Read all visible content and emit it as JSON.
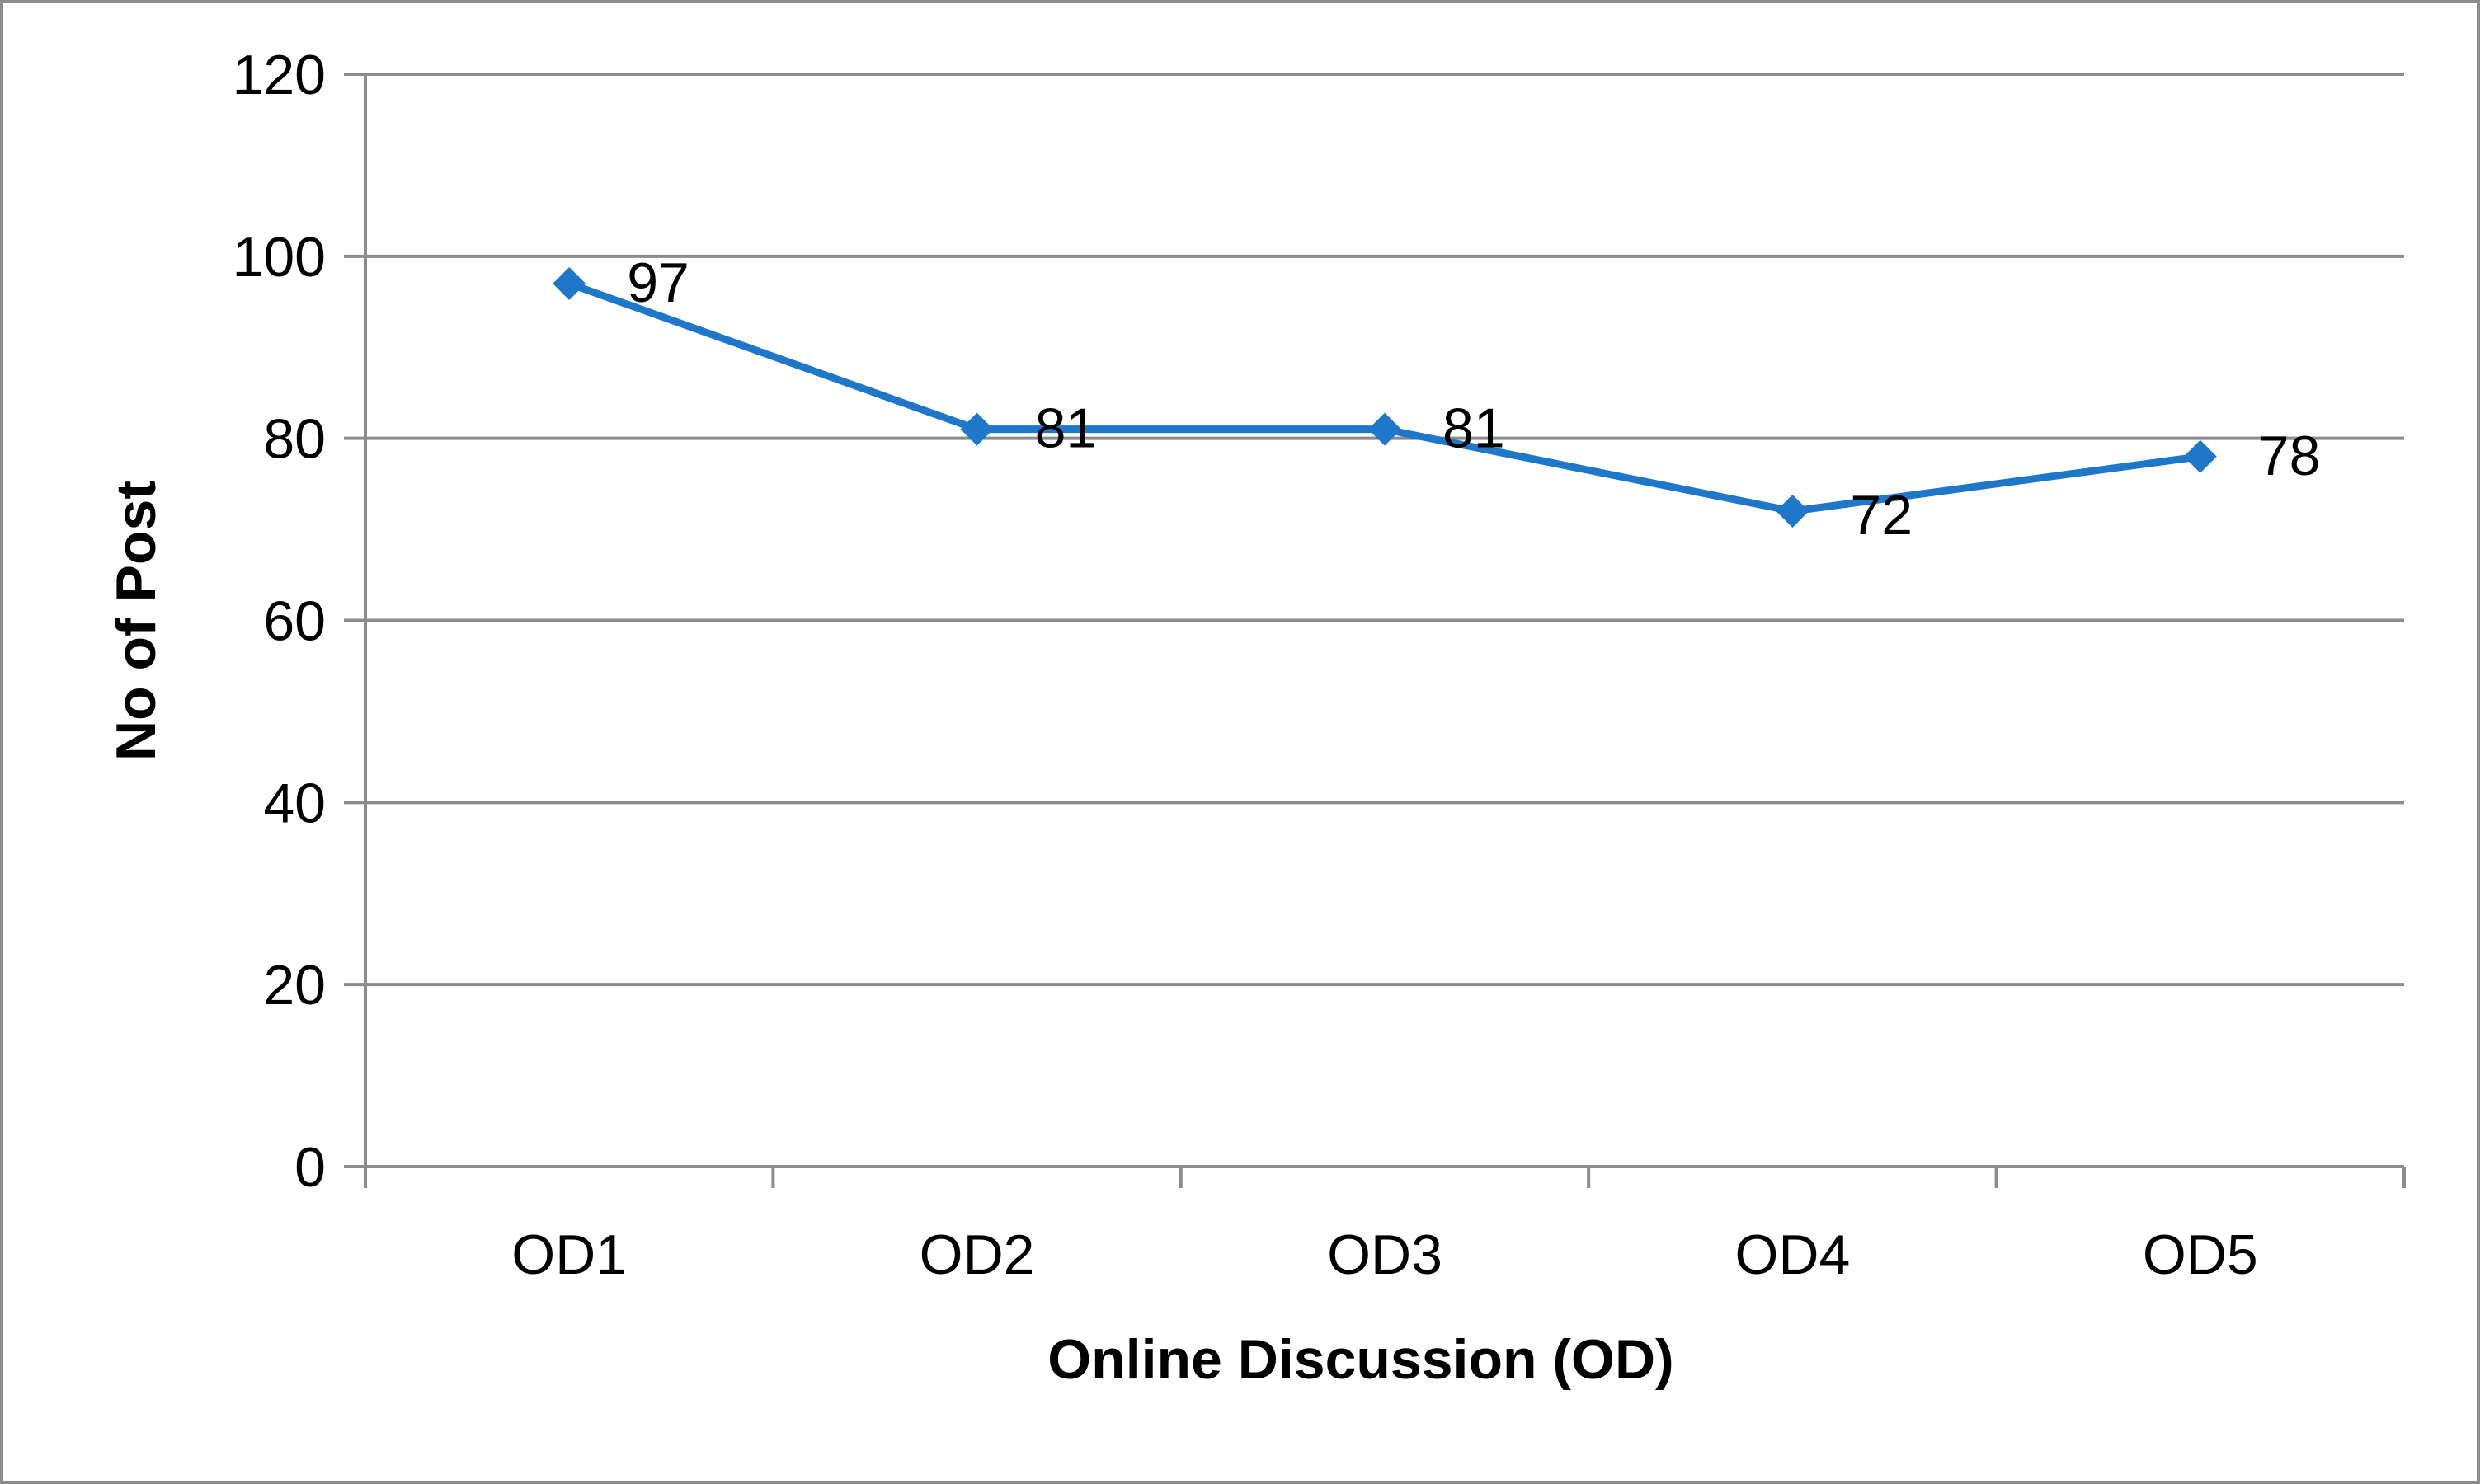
{
  "chart_data": {
    "type": "line",
    "categories": [
      "OD1",
      "OD2",
      "OD3",
      "OD4",
      "OD5"
    ],
    "series": [
      {
        "values": [
          97,
          81,
          81,
          72,
          78
        ],
        "color": "#1f77c9",
        "marker": "diamond"
      }
    ],
    "data_labels": [
      "97",
      "81",
      "81",
      "72",
      "78"
    ],
    "xlabel": "Online Discussion (OD)",
    "ylabel": "No of Post",
    "ylim": [
      0,
      120
    ],
    "yticks": [
      0,
      20,
      40,
      60,
      80,
      100,
      120
    ],
    "ytick_labels": [
      "0",
      "20",
      "40",
      "60",
      "80",
      "100",
      "120"
    ],
    "grid": "horizontal",
    "legend": "none",
    "colors": {
      "gridline": "#8c8c8c",
      "frame": "#8c8c8c",
      "line": "#1f77c9"
    }
  }
}
